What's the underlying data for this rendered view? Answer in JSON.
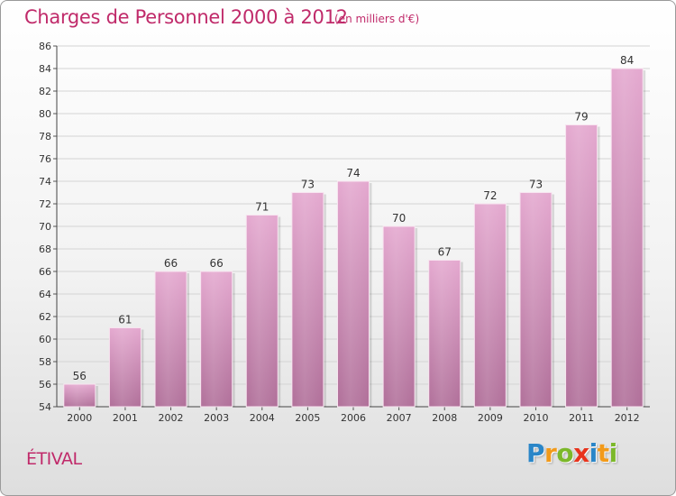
{
  "header": {
    "title": "Charges de Personnel 2000 à 2012",
    "unit": "(en milliers d'€)"
  },
  "footer": {
    "commune": "ÉTIVAL",
    "logo_letters": [
      {
        "ch": "P",
        "color": "#2a86c8"
      },
      {
        "ch": "r",
        "color": "#f29a1a"
      },
      {
        "ch": "o",
        "color": "#7cb82a"
      },
      {
        "ch": "x",
        "color": "#e8331c"
      },
      {
        "ch": "i",
        "color": "#2a86c8"
      },
      {
        "ch": "t",
        "color": "#f29a1a"
      },
      {
        "ch": "i",
        "color": "#7cb82a"
      }
    ]
  },
  "colors": {
    "title": "#c02a6a",
    "bar_top": "#e4a8cf",
    "bar_bottom": "#b06f99",
    "grid": "#d4d4d4"
  },
  "chart_data": {
    "type": "bar",
    "title": "Charges de Personnel 2000 à 2012",
    "categories": [
      "2000",
      "2001",
      "2002",
      "2003",
      "2004",
      "2005",
      "2006",
      "2007",
      "2008",
      "2009",
      "2010",
      "2011",
      "2012"
    ],
    "values": [
      56,
      61,
      66,
      66,
      71,
      73,
      74,
      70,
      67,
      72,
      73,
      79,
      84
    ],
    "ylim": [
      54,
      86
    ],
    "yticks": [
      54,
      56,
      58,
      60,
      62,
      64,
      66,
      68,
      70,
      72,
      74,
      76,
      78,
      80,
      82,
      84,
      86
    ],
    "grid": true,
    "xlabel": "",
    "ylabel": ""
  }
}
